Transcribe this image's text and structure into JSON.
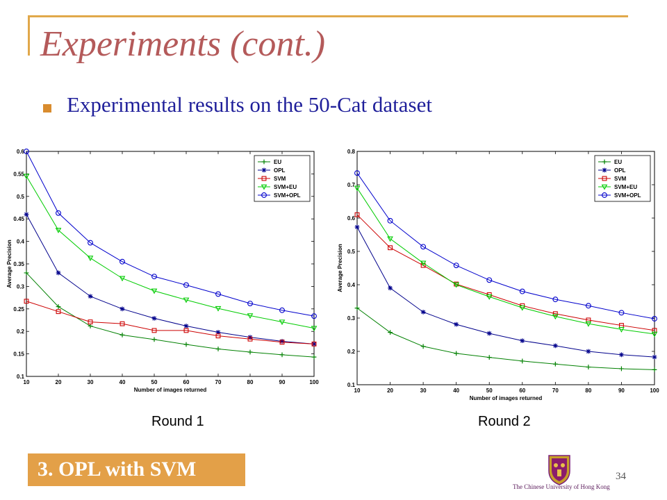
{
  "slide": {
    "title": "Experiments (cont.)",
    "bullet": "Experimental results on the 50-Cat dataset",
    "footer": "3. OPL with SVM",
    "page_number": "34",
    "logo_text": "The Chinese University of Hong Kong"
  },
  "round_labels": [
    "Round 1",
    "Round 2"
  ],
  "colors": {
    "title": "#b45a5a",
    "bullet_text": "#1f1f9a",
    "accent": "#e3a048"
  },
  "chart_data": [
    {
      "type": "line",
      "xlabel": "Number of images returned",
      "ylabel": "Average Precision",
      "x": [
        10,
        20,
        30,
        40,
        50,
        60,
        70,
        80,
        90,
        100
      ],
      "ylim": [
        0.1,
        0.6
      ],
      "yticks": [
        0.1,
        0.15,
        0.2,
        0.25,
        0.3,
        0.35,
        0.4,
        0.45,
        0.5,
        0.55,
        0.6
      ],
      "ytick_labels": [
        "0.1",
        "0.15",
        "0.2",
        "0.25",
        "0.3",
        "0.35",
        "0.4",
        "0.45",
        "0.5",
        "0.55",
        "0.6"
      ],
      "grid": false,
      "legend": "top-right",
      "series": [
        {
          "name": "EU",
          "color": "#008000",
          "marker": "plus",
          "values": [
            0.33,
            0.255,
            0.212,
            0.192,
            0.182,
            0.171,
            0.161,
            0.154,
            0.148,
            0.143
          ]
        },
        {
          "name": "OPL",
          "color": "#00008b",
          "marker": "star",
          "values": [
            0.46,
            0.33,
            0.278,
            0.25,
            0.229,
            0.212,
            0.198,
            0.187,
            0.178,
            0.172
          ]
        },
        {
          "name": "SVM",
          "color": "#cc0000",
          "marker": "square",
          "values": [
            0.267,
            0.244,
            0.221,
            0.217,
            0.202,
            0.202,
            0.19,
            0.183,
            0.176,
            0.172
          ]
        },
        {
          "name": "SVM+EU",
          "color": "#00cc00",
          "marker": "triangle-down",
          "values": [
            0.545,
            0.425,
            0.363,
            0.318,
            0.29,
            0.27,
            0.251,
            0.235,
            0.221,
            0.207
          ]
        },
        {
          "name": "SVM+OPL",
          "color": "#0000cc",
          "marker": "circle",
          "values": [
            0.6,
            0.463,
            0.397,
            0.355,
            0.322,
            0.303,
            0.283,
            0.262,
            0.247,
            0.234
          ]
        }
      ]
    },
    {
      "type": "line",
      "xlabel": "Number of images returned",
      "ylabel": "Average Precision",
      "x": [
        10,
        20,
        30,
        40,
        50,
        60,
        70,
        80,
        90,
        100
      ],
      "ylim": [
        0.1,
        0.8
      ],
      "yticks": [
        0.1,
        0.2,
        0.3,
        0.4,
        0.5,
        0.6,
        0.7,
        0.8
      ],
      "ytick_labels": [
        "0.1",
        "0.2",
        "0.3",
        "0.4",
        "0.5",
        "0.6",
        "0.7",
        "0.8"
      ],
      "grid": false,
      "legend": "top-right",
      "series": [
        {
          "name": "EU",
          "color": "#008000",
          "marker": "plus",
          "values": [
            0.33,
            0.257,
            0.215,
            0.194,
            0.182,
            0.171,
            0.162,
            0.153,
            0.148,
            0.145
          ]
        },
        {
          "name": "OPL",
          "color": "#00008b",
          "marker": "star",
          "values": [
            0.573,
            0.39,
            0.318,
            0.281,
            0.254,
            0.232,
            0.217,
            0.2,
            0.19,
            0.183
          ]
        },
        {
          "name": "SVM",
          "color": "#cc0000",
          "marker": "square",
          "values": [
            0.61,
            0.511,
            0.458,
            0.402,
            0.37,
            0.337,
            0.313,
            0.294,
            0.278,
            0.263
          ]
        },
        {
          "name": "SVM+EU",
          "color": "#00cc00",
          "marker": "triangle-down",
          "values": [
            0.69,
            0.538,
            0.465,
            0.4,
            0.364,
            0.331,
            0.305,
            0.283,
            0.266,
            0.252
          ]
        },
        {
          "name": "SVM+OPL",
          "color": "#0000cc",
          "marker": "circle",
          "values": [
            0.735,
            0.592,
            0.514,
            0.458,
            0.414,
            0.38,
            0.356,
            0.337,
            0.316,
            0.298
          ]
        }
      ]
    }
  ]
}
